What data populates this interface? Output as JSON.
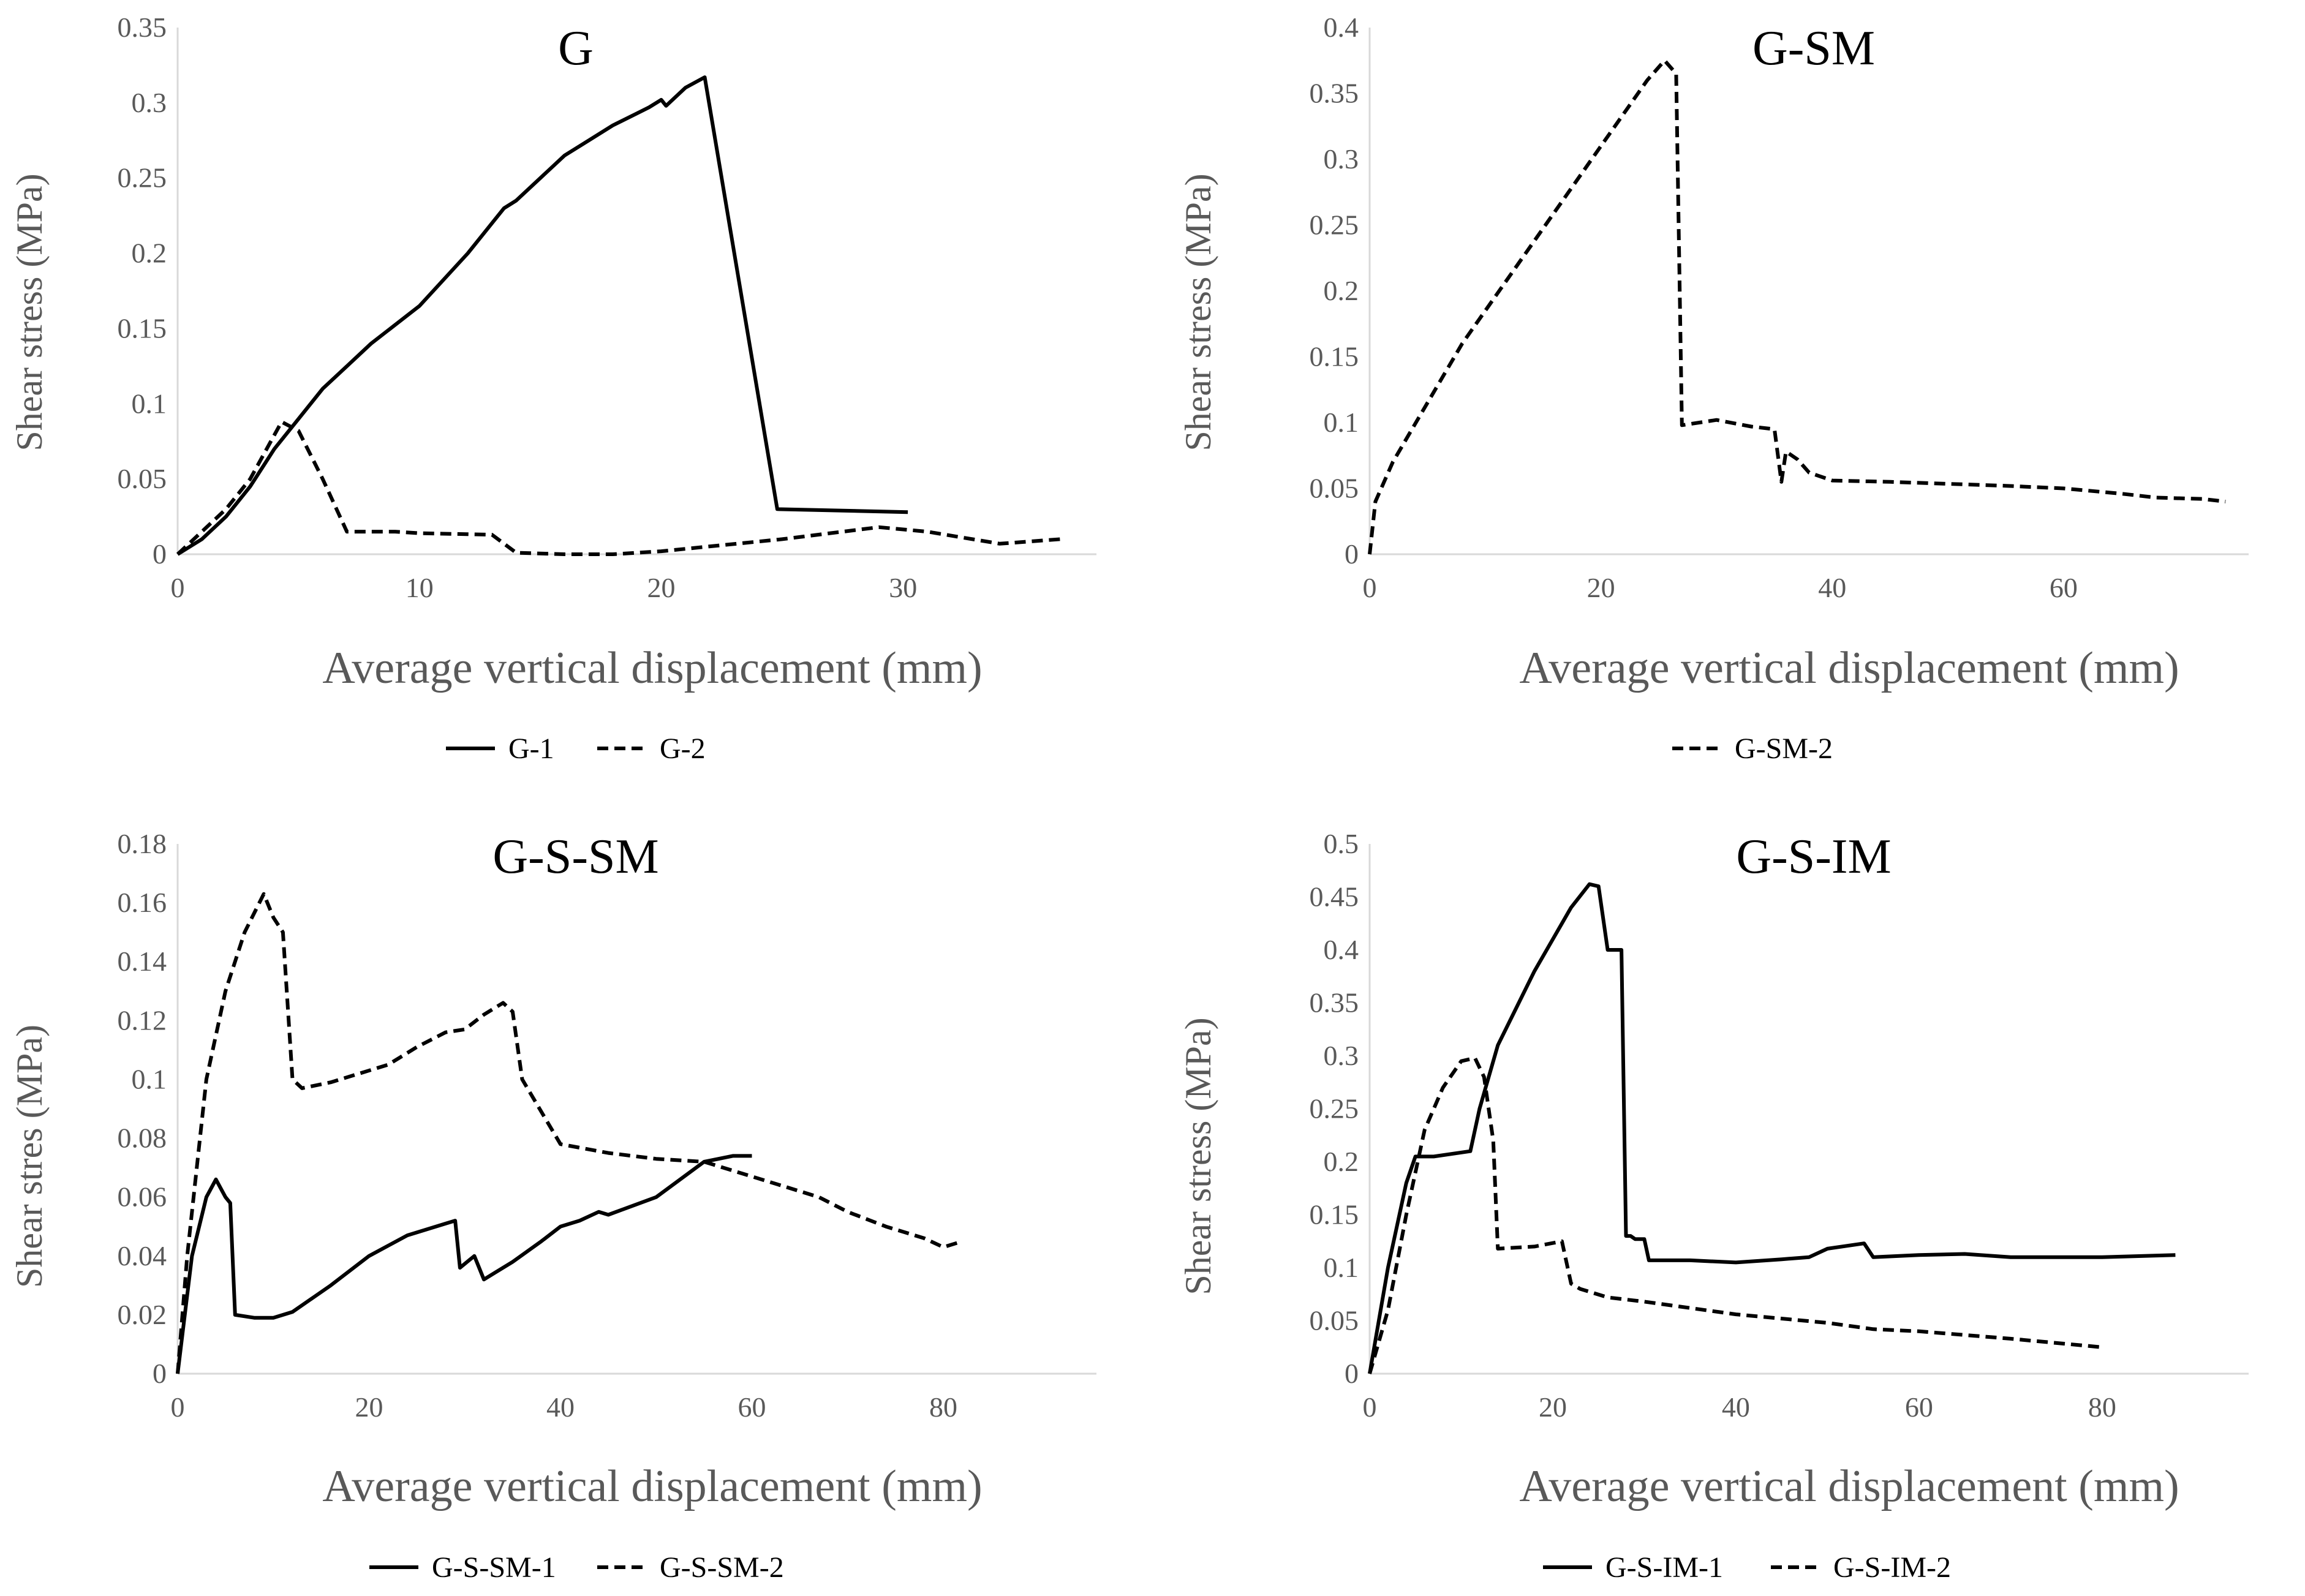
{
  "chart_data": [
    {
      "type": "line",
      "title": "G",
      "xlabel": "Average vertical displacement (mm)",
      "ylabel": "Shear stress (MPa)",
      "xlim": [
        0,
        38
      ],
      "ylim": [
        0,
        0.35
      ],
      "xticks": [
        0,
        10,
        20,
        30
      ],
      "yticks": [
        0,
        0.05,
        0.1,
        0.15,
        0.2,
        0.25,
        0.3,
        0.35
      ],
      "ytick_labels": [
        "0",
        "0.05",
        "0.1",
        "0.15",
        "0.2",
        "0.25",
        "0.3",
        "0.35"
      ],
      "legend_position": "bottom",
      "series": [
        {
          "name": "G-1",
          "style": "solid",
          "x": [
            0,
            1,
            2,
            3,
            4,
            5,
            6,
            7,
            8,
            10,
            12,
            13,
            13.5,
            14,
            16,
            17,
            18,
            19,
            19.5,
            20,
            20.2,
            21,
            21.8,
            24.8,
            30.2
          ],
          "y": [
            0,
            0.01,
            0.025,
            0.045,
            0.07,
            0.09,
            0.11,
            0.125,
            0.14,
            0.165,
            0.2,
            0.22,
            0.23,
            0.235,
            0.265,
            0.275,
            0.285,
            0.293,
            0.297,
            0.302,
            0.298,
            0.31,
            0.317,
            0.03,
            0.028
          ]
        },
        {
          "name": "G-2",
          "style": "dashed",
          "x": [
            0,
            1,
            2,
            3,
            4.3,
            5,
            6,
            7,
            9,
            10,
            13,
            14,
            16,
            18,
            20,
            25,
            29,
            31,
            34,
            36.5
          ],
          "y": [
            0,
            0.015,
            0.03,
            0.05,
            0.088,
            0.082,
            0.05,
            0.015,
            0.015,
            0.014,
            0.013,
            0.001,
            0,
            0,
            0.002,
            0.01,
            0.018,
            0.015,
            0.007,
            0.01
          ]
        }
      ]
    },
    {
      "type": "line",
      "title": "G-SM",
      "xlabel": "Average vertical displacement (mm)",
      "ylabel": "Shear stress (MPa)",
      "xlim": [
        0,
        76
      ],
      "ylim": [
        0,
        0.4
      ],
      "xticks": [
        0,
        20,
        40,
        60
      ],
      "yticks": [
        0,
        0.05,
        0.1,
        0.15,
        0.2,
        0.25,
        0.3,
        0.35,
        0.4
      ],
      "ytick_labels": [
        "0",
        "0.05",
        "0.1",
        "0.15",
        "0.2",
        "0.25",
        "0.3",
        "0.35",
        "0.4"
      ],
      "legend_position": "bottom",
      "series": [
        {
          "name": "G-SM-2",
          "style": "dashed",
          "x": [
            0,
            0.5,
            2,
            4,
            8,
            12,
            16,
            20,
            24,
            25.5,
            26.5,
            27,
            30,
            33,
            35,
            35.6,
            36,
            37,
            38,
            40,
            45,
            55,
            60,
            65,
            68,
            72,
            74
          ],
          "y": [
            0,
            0.04,
            0.07,
            0.1,
            0.16,
            0.21,
            0.26,
            0.31,
            0.36,
            0.375,
            0.365,
            0.098,
            0.102,
            0.097,
            0.095,
            0.055,
            0.078,
            0.072,
            0.062,
            0.056,
            0.055,
            0.052,
            0.05,
            0.046,
            0.043,
            0.042,
            0.04
          ]
        }
      ]
    },
    {
      "type": "line",
      "title": "G-S-SM",
      "xlabel": "Average vertical displacement (mm)",
      "ylabel": "Shear stres (MPa)",
      "xlim": [
        0,
        96
      ],
      "ylim": [
        0,
        0.18
      ],
      "xticks": [
        0,
        20,
        40,
        60,
        80
      ],
      "yticks": [
        0,
        0.02,
        0.04,
        0.06,
        0.08,
        0.1,
        0.12,
        0.14,
        0.16,
        0.18
      ],
      "ytick_labels": [
        "0",
        "0.02",
        "0.04",
        "0.06",
        "0.08",
        "0.1",
        "0.12",
        "0.14",
        "0.16",
        "0.18"
      ],
      "legend_position": "bottom",
      "series": [
        {
          "name": "G-S-SM-1",
          "style": "solid",
          "x": [
            0,
            1.5,
            3,
            4,
            5,
            5.5,
            6,
            8,
            10,
            12,
            16,
            20,
            24,
            28,
            29,
            29.5,
            31,
            32,
            33,
            35,
            38,
            40,
            42,
            44,
            45,
            50,
            55,
            58,
            60
          ],
          "y": [
            0,
            0.04,
            0.06,
            0.066,
            0.06,
            0.058,
            0.02,
            0.019,
            0.019,
            0.021,
            0.03,
            0.04,
            0.047,
            0.051,
            0.052,
            0.036,
            0.04,
            0.032,
            0.034,
            0.038,
            0.045,
            0.05,
            0.052,
            0.055,
            0.054,
            0.06,
            0.072,
            0.074,
            0.074
          ]
        },
        {
          "name": "G-S-SM-2",
          "style": "dashed",
          "x": [
            0,
            1,
            3,
            5,
            7,
            9,
            10,
            11,
            12,
            13,
            16,
            22,
            25,
            28,
            30,
            32,
            34,
            35,
            36,
            40,
            45,
            50,
            55,
            60,
            67,
            70,
            74,
            78,
            80,
            82
          ],
          "y": [
            0,
            0.04,
            0.1,
            0.13,
            0.15,
            0.163,
            0.155,
            0.15,
            0.1,
            0.097,
            0.099,
            0.105,
            0.111,
            0.116,
            0.117,
            0.122,
            0.126,
            0.123,
            0.1,
            0.078,
            0.075,
            0.073,
            0.072,
            0.067,
            0.06,
            0.055,
            0.05,
            0.046,
            0.043,
            0.045
          ]
        }
      ]
    },
    {
      "type": "line",
      "title": "G-S-IM",
      "xlabel": "Average vertical displacement (mm)",
      "ylabel": "Shear stress (MPa)",
      "xlim": [
        0,
        96
      ],
      "ylim": [
        0,
        0.5
      ],
      "xticks": [
        0,
        20,
        40,
        60,
        80
      ],
      "yticks": [
        0,
        0.05,
        0.1,
        0.15,
        0.2,
        0.25,
        0.3,
        0.35,
        0.4,
        0.45,
        0.5
      ],
      "ytick_labels": [
        "0",
        "0.05",
        "0.1",
        "0.15",
        "0.2",
        "0.25",
        "0.3",
        "0.35",
        "0.4",
        "0.45",
        "0.5"
      ],
      "legend_position": "bottom",
      "series": [
        {
          "name": "G-S-IM-1",
          "style": "solid",
          "x": [
            0,
            2,
            4,
            5,
            7,
            11,
            12,
            14,
            18,
            22,
            24,
            25,
            26,
            26.5,
            27.5,
            28,
            28.5,
            29,
            30,
            30.5,
            35,
            40,
            45,
            48,
            50,
            54,
            55,
            60,
            65,
            70,
            80,
            88
          ],
          "y": [
            0,
            0.1,
            0.18,
            0.205,
            0.205,
            0.21,
            0.25,
            0.31,
            0.38,
            0.44,
            0.462,
            0.46,
            0.4,
            0.4,
            0.4,
            0.13,
            0.13,
            0.127,
            0.127,
            0.107,
            0.107,
            0.105,
            0.108,
            0.11,
            0.118,
            0.123,
            0.11,
            0.112,
            0.113,
            0.11,
            0.11,
            0.112
          ]
        },
        {
          "name": "G-S-IM-2",
          "style": "dashed",
          "x": [
            0,
            2,
            4,
            6,
            8,
            10,
            11.5,
            12.5,
            13.5,
            14,
            18,
            21,
            22,
            23,
            26,
            30,
            40,
            50,
            55,
            60,
            70,
            80
          ],
          "y": [
            0,
            0.06,
            0.15,
            0.23,
            0.27,
            0.295,
            0.298,
            0.28,
            0.22,
            0.118,
            0.12,
            0.125,
            0.085,
            0.08,
            0.072,
            0.068,
            0.056,
            0.048,
            0.042,
            0.04,
            0.033,
            0.025
          ]
        }
      ]
    }
  ]
}
